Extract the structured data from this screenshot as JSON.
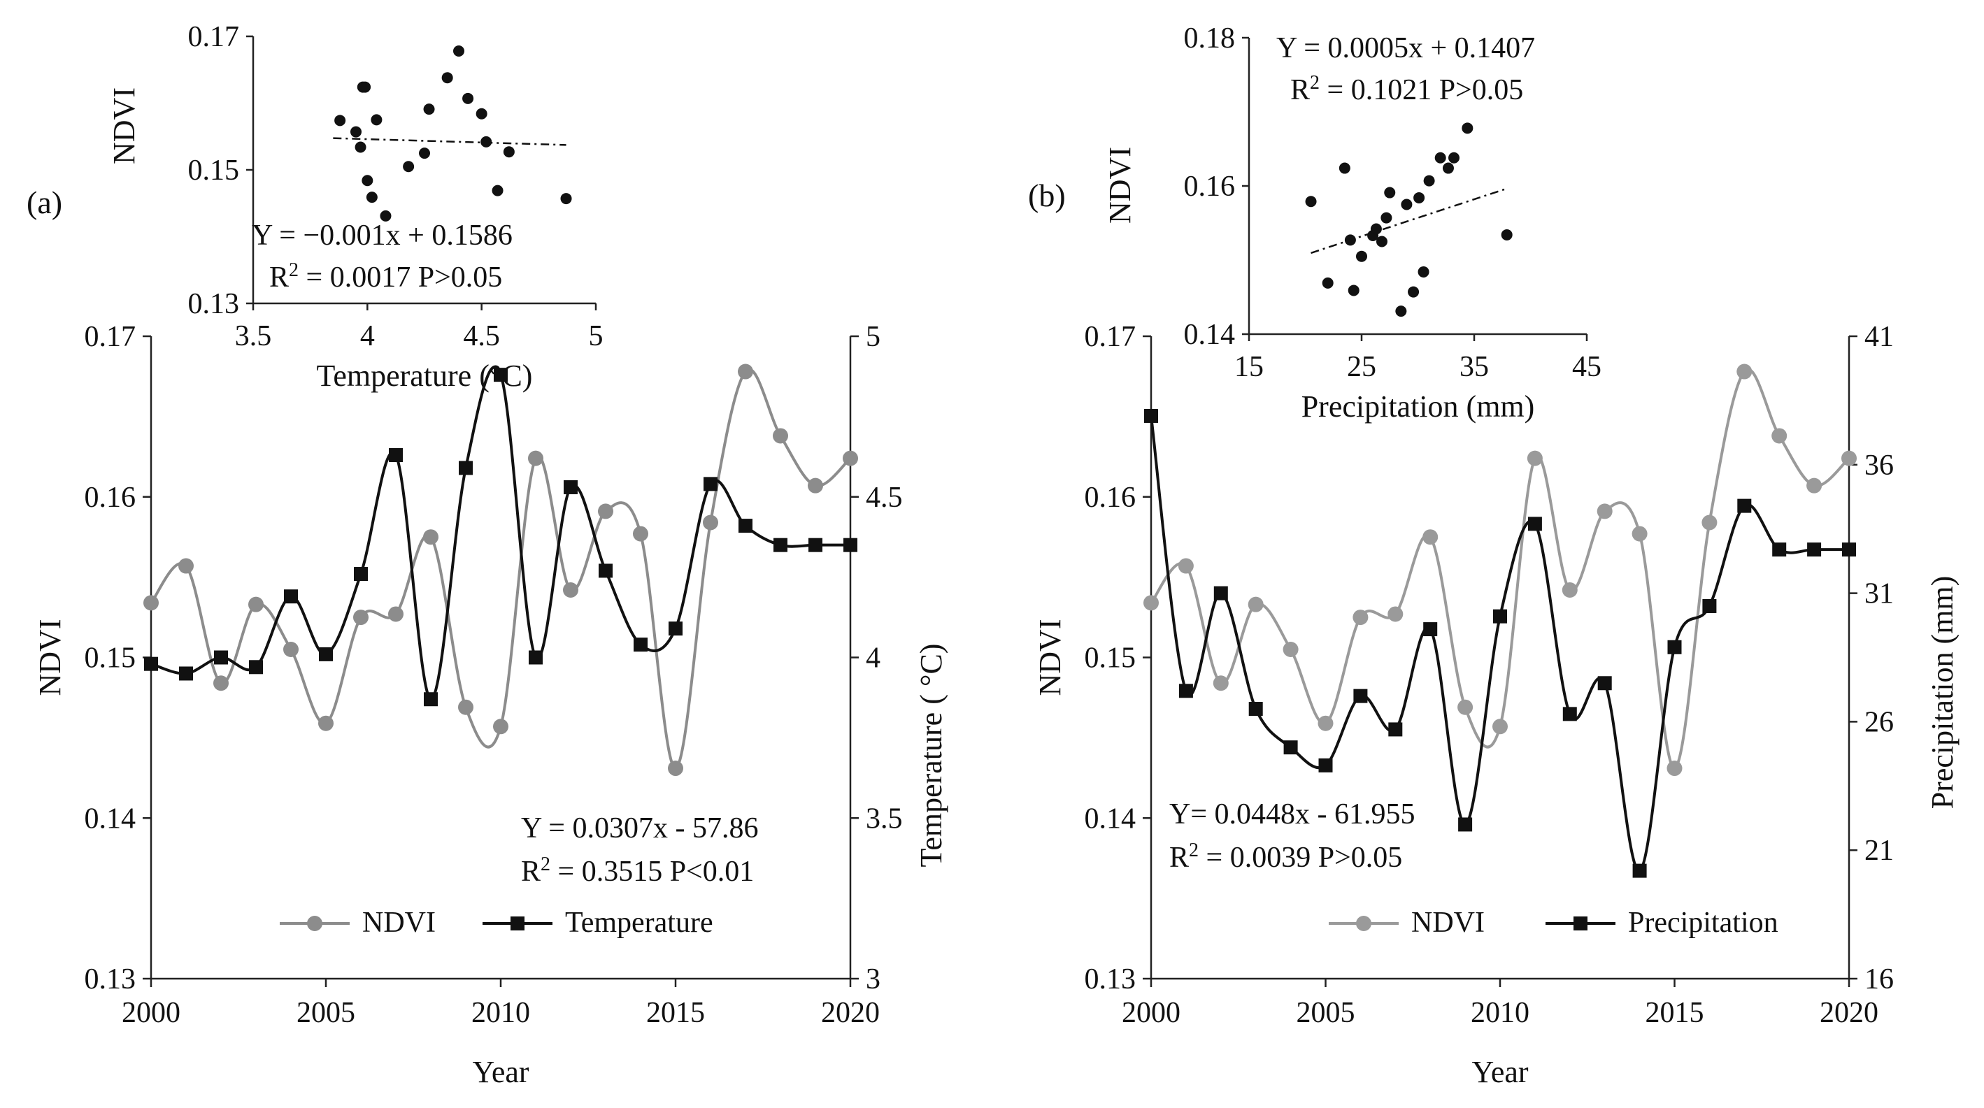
{
  "chart_data": [
    {
      "id": "a",
      "type": "line",
      "panel_label": "(a)",
      "xlabel": "Year",
      "ylabel": "NDVI",
      "y2label": "Temperature ( °C)",
      "xlim": [
        2000,
        2020
      ],
      "ylim": [
        0.13,
        0.17
      ],
      "y2lim": [
        3,
        5
      ],
      "x_ticks": [
        "2000",
        "2005",
        "2010",
        "2015",
        "2020"
      ],
      "y_ticks": [
        "0.13",
        "0.14",
        "0.15",
        "0.16",
        "0.17"
      ],
      "y2_ticks": [
        "3",
        "3.5",
        "4",
        "4.5",
        "5"
      ],
      "series": [
        {
          "name": "NDVI",
          "axis": "left",
          "color": "#8c8c8c",
          "marker": "circle",
          "x": [
            2000,
            2001,
            2002,
            2003,
            2004,
            2005,
            2006,
            2007,
            2008,
            2009,
            2010,
            2011,
            2012,
            2013,
            2014,
            2015,
            2016,
            2017,
            2018,
            2019,
            2020
          ],
          "values": [
            0.1534,
            0.1557,
            0.1484,
            0.1533,
            0.1505,
            0.1459,
            0.1525,
            0.1527,
            0.1575,
            0.1469,
            0.1457,
            0.1624,
            0.1542,
            0.1591,
            0.1577,
            0.1431,
            0.1584,
            0.1678,
            0.1638,
            0.1607,
            0.1624
          ]
        },
        {
          "name": "Temperature",
          "axis": "right",
          "color": "#111111",
          "marker": "square",
          "x": [
            2000,
            2001,
            2002,
            2003,
            2004,
            2005,
            2006,
            2007,
            2008,
            2009,
            2010,
            2011,
            2012,
            2013,
            2014,
            2015,
            2016,
            2017,
            2018,
            2019,
            2020
          ],
          "values": [
            3.98,
            3.95,
            4.0,
            3.97,
            4.19,
            4.01,
            4.26,
            4.63,
            3.87,
            4.59,
            4.88,
            4.0,
            4.53,
            4.27,
            4.04,
            4.09,
            4.54,
            4.41,
            4.35,
            4.35,
            4.35
          ]
        }
      ],
      "trendline": {
        "slope": 0.0307,
        "intercept": -57.86,
        "style": "dash-dot"
      },
      "equation_lines": [
        "Y = 0.0307x - 57.86",
        "R² = 0.3515  P<0.01"
      ],
      "legend": [
        "NDVI",
        "Temperature"
      ],
      "legend_position": "bottom-center",
      "inset": {
        "type": "scatter",
        "xlabel": "Temperature (°C)",
        "ylabel": "NDVI",
        "xlim": [
          3.5,
          5
        ],
        "ylim": [
          0.13,
          0.17
        ],
        "x_ticks": [
          "3.5",
          "4",
          "4.5",
          "5"
        ],
        "y_ticks": [
          "0.13",
          "0.15",
          "0.17"
        ],
        "x": [
          3.88,
          3.95,
          3.97,
          4.0,
          4.02,
          4.04,
          4.08,
          4.18,
          4.25,
          4.27,
          4.35,
          4.4,
          4.44,
          4.5,
          4.52,
          4.57,
          4.62,
          4.87,
          3.99,
          3.98
        ],
        "y": [
          0.1574,
          0.1557,
          0.1534,
          0.1484,
          0.1459,
          0.1575,
          0.1431,
          0.1505,
          0.1525,
          0.1591,
          0.1638,
          0.1678,
          0.1607,
          0.1584,
          0.1542,
          0.1469,
          0.1527,
          0.1457,
          0.1624,
          0.1624
        ],
        "trendline": {
          "slope": -0.001,
          "intercept": 0.1586,
          "style": "dash-dot"
        },
        "equation_lines": [
          "Y = −0.001x + 0.1586",
          "R² = 0.0017 P>0.05"
        ]
      }
    },
    {
      "id": "b",
      "type": "line",
      "panel_label": "(b)",
      "xlabel": "Year",
      "ylabel": "NDVI",
      "y2label": "Precipitation (mm)",
      "xlim": [
        2000,
        2020
      ],
      "ylim": [
        0.13,
        0.17
      ],
      "y2lim": [
        16,
        41
      ],
      "x_ticks": [
        "2000",
        "2005",
        "2010",
        "2015",
        "2020"
      ],
      "y_ticks": [
        "0.13",
        "0.14",
        "0.15",
        "0.16",
        "0.17"
      ],
      "y2_ticks": [
        "16",
        "21",
        "26",
        "31",
        "36",
        "41"
      ],
      "series": [
        {
          "name": "NDVI",
          "axis": "left",
          "color": "#9a9a9a",
          "marker": "circle",
          "x": [
            2000,
            2001,
            2002,
            2003,
            2004,
            2005,
            2006,
            2007,
            2008,
            2009,
            2010,
            2011,
            2012,
            2013,
            2014,
            2015,
            2016,
            2017,
            2018,
            2019,
            2020
          ],
          "values": [
            0.1534,
            0.1557,
            0.1484,
            0.1533,
            0.1505,
            0.1459,
            0.1525,
            0.1527,
            0.1575,
            0.1469,
            0.1457,
            0.1624,
            0.1542,
            0.1591,
            0.1577,
            0.1431,
            0.1584,
            0.1678,
            0.1638,
            0.1607,
            0.1624
          ]
        },
        {
          "name": "Precipitation",
          "axis": "right",
          "color": "#111111",
          "marker": "square",
          "x": [
            2000,
            2001,
            2002,
            2003,
            2004,
            2005,
            2006,
            2007,
            2008,
            2009,
            2010,
            2011,
            2012,
            2013,
            2014,
            2015,
            2016,
            2017,
            2018,
            2019,
            2020
          ],
          "values": [
            37.9,
            27.2,
            31.0,
            26.5,
            25.0,
            24.3,
            27.0,
            25.7,
            29.6,
            22.0,
            30.1,
            33.7,
            26.3,
            27.5,
            20.2,
            28.9,
            30.5,
            34.4,
            32.7,
            32.7,
            32.7
          ]
        }
      ],
      "trendline": {
        "slope": 0.0448,
        "intercept": -61.955,
        "style": "dash-dot"
      },
      "equation_lines": [
        "Y= 0.0448x - 61.955",
        "R² = 0.0039    P>0.05"
      ],
      "legend": [
        "NDVI",
        "Precipitation"
      ],
      "legend_position": "bottom-center",
      "inset": {
        "type": "scatter",
        "xlabel": "Precipitation (mm)",
        "ylabel": "NDVI",
        "xlim": [
          15,
          45
        ],
        "ylim": [
          0.14,
          0.18
        ],
        "x_ticks": [
          "15",
          "25",
          "35",
          "45"
        ],
        "y_ticks": [
          "0.14",
          "0.16",
          "0.18"
        ],
        "x": [
          20.5,
          22.0,
          23.5,
          24.3,
          25.0,
          26.0,
          26.3,
          26.8,
          27.2,
          27.5,
          28.5,
          29.0,
          29.6,
          30.1,
          31.0,
          32.0,
          32.7,
          33.2,
          34.4,
          37.9,
          24.0,
          30.5
        ],
        "y": [
          0.1579,
          0.1469,
          0.1624,
          0.1459,
          0.1505,
          0.1533,
          0.1542,
          0.1525,
          0.1557,
          0.1591,
          0.1431,
          0.1575,
          0.1457,
          0.1584,
          0.1607,
          0.1638,
          0.1624,
          0.1638,
          0.1678,
          0.1534,
          0.1527,
          0.1484
        ],
        "trendline": {
          "slope": 0.0005,
          "intercept": 0.1407,
          "style": "dash-dot"
        },
        "equation_lines": [
          "Y = 0.0005x + 0.1407",
          "R² = 0.1021 P>0.05"
        ]
      }
    }
  ]
}
